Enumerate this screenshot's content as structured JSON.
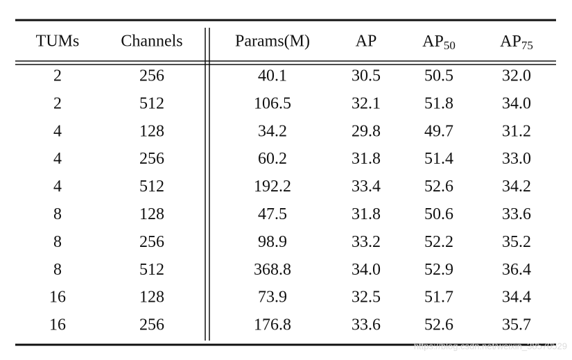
{
  "table": {
    "header": [
      {
        "text": "TUMs"
      },
      {
        "text": "Channels"
      },
      {
        "text": "Params(M)"
      },
      {
        "text": "AP"
      },
      {
        "text": "AP",
        "sub": "50"
      },
      {
        "text": "AP",
        "sub": "75"
      }
    ],
    "rows": [
      [
        "2",
        "256",
        "40.1",
        "30.5",
        "50.5",
        "32.0"
      ],
      [
        "2",
        "512",
        "106.5",
        "32.1",
        "51.8",
        "34.0"
      ],
      [
        "4",
        "128",
        "34.2",
        "29.8",
        "49.7",
        "31.2"
      ],
      [
        "4",
        "256",
        "60.2",
        "31.8",
        "51.4",
        "33.0"
      ],
      [
        "4",
        "512",
        "192.2",
        "33.4",
        "52.6",
        "34.2"
      ],
      [
        "8",
        "128",
        "47.5",
        "31.8",
        "50.6",
        "33.6"
      ],
      [
        "8",
        "256",
        "98.9",
        "33.2",
        "52.2",
        "35.2"
      ],
      [
        "8",
        "512",
        "368.8",
        "34.0",
        "52.9",
        "36.4"
      ],
      [
        "16",
        "128",
        "73.9",
        "32.5",
        "51.7",
        "34.4"
      ],
      [
        "16",
        "256",
        "176.8",
        "33.6",
        "52.6",
        "35.7"
      ]
    ]
  },
  "watermark": "https://blog.csdn.net/weixin_38570529"
}
